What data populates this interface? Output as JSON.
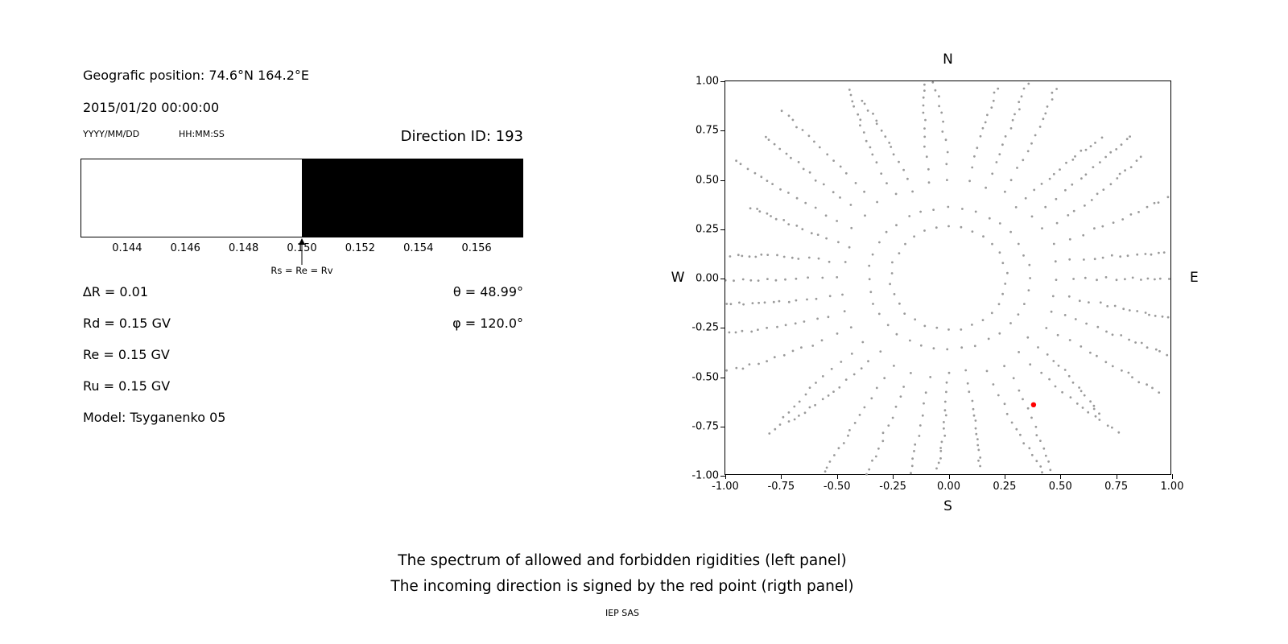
{
  "colors": {
    "background": "#ffffff",
    "text": "#000000",
    "axis": "#000000",
    "allowed_fill": "#ffffff",
    "forbidden_fill": "#000000",
    "dot_gray": "#9a9a9a",
    "red_point": "#ff0000"
  },
  "info_panel": {
    "geographic_position": "Geografic position: 74.6°N 164.2°E",
    "datetime": "2015/01/20 00:00:00",
    "date_format": "YYYY/MM/DD",
    "time_format": "HH:MM:SS",
    "direction_id": "Direction ID: 193",
    "delta_r": "∆R = 0.01",
    "rd": "Rd = 0.15 GV",
    "re": "Re = 0.15 GV",
    "ru": "Ru = 0.15 GV",
    "model": "Model: Tsyganenko 05",
    "theta": "θ = 48.99°",
    "phi": "φ = 120.0°"
  },
  "captions": {
    "line1": "The spectrum of allowed and forbidden rigidities (left panel)",
    "line2": "The incoming direction is signed by the red point (rigth panel)",
    "credit": "IEP SAS"
  },
  "chart_data": [
    {
      "id": "rigidity-spectrum",
      "type": "area",
      "xlabel": "",
      "ylabel": "",
      "xlim": [
        0.1424,
        0.1576
      ],
      "xticks": [
        "0.144",
        "0.146",
        "0.148",
        "0.150",
        "0.152",
        "0.154",
        "0.156"
      ],
      "regions": [
        {
          "name": "allowed",
          "from": 0.1424,
          "to": 0.15,
          "color": "#ffffff"
        },
        {
          "name": "forbidden",
          "from": 0.15,
          "to": 0.1576,
          "color": "#000000"
        }
      ],
      "annotation": {
        "x": 0.15,
        "label": "Rs = Re = Rv"
      }
    },
    {
      "id": "incoming-direction",
      "type": "scatter",
      "xlim": [
        -1.0,
        1.0
      ],
      "ylim": [
        -1.0,
        1.0
      ],
      "xticks": [
        "-1.00",
        "-0.75",
        "-0.50",
        "-0.25",
        "0.00",
        "0.25",
        "0.50",
        "0.75",
        "1.00"
      ],
      "yticks": [
        "1.00",
        "0.75",
        "0.50",
        "0.25",
        "0.00",
        "-0.25",
        "-0.50",
        "-0.75",
        "-1.00"
      ],
      "grid": false,
      "compass": {
        "north": "N",
        "south": "S",
        "west": "W",
        "east": "E"
      },
      "gray_directions": {
        "pattern": "inner dotted ring plus radial spokes of small gray dots, denser toward outer edge",
        "color": "#9a9a9a",
        "inner_ring_radius": 0.26,
        "inner_ring_points": 30,
        "n_spokes": 36,
        "angle_step_deg": 10,
        "spoke_start_radius": 0.36,
        "spoke_end_radius": 1.06,
        "points_per_spoke": 16
      },
      "red_point": {
        "x": 0.38,
        "y": -0.64,
        "color": "#ff0000"
      }
    }
  ]
}
